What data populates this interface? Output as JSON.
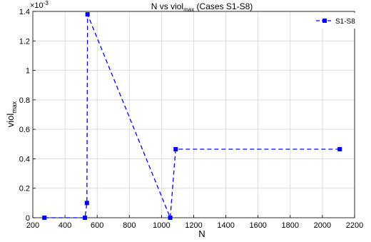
{
  "chart_data": {
    "type": "line",
    "title_main": "N  vs  viol",
    "title_sub": "max",
    "title_tail": " (Cases  S1-S8)",
    "xlabel": "N",
    "ylabel_main": "viol",
    "ylabel_sub": "max",
    "y_multiplier": "×10",
    "y_multiplier_exp": "-3",
    "xlim": [
      200,
      2200
    ],
    "ylim": [
      0,
      1.4
    ],
    "x_ticks": [
      200,
      400,
      600,
      800,
      1000,
      1200,
      1400,
      1600,
      1800,
      2000,
      2200
    ],
    "y_ticks": [
      0,
      0.2,
      0.4,
      0.6,
      0.8,
      1,
      1.2,
      1.4
    ],
    "grid": true,
    "legend_position": "top-right",
    "series": [
      {
        "name": "S1-S8",
        "color": "#0000ff",
        "line_style": "dashed",
        "marker": "square",
        "x": [
          272,
          524,
          536,
          540,
          1054,
          1088,
          2108
        ],
        "y": [
          0,
          0,
          0.1,
          1.38,
          0,
          0.465,
          0.465
        ]
      }
    ]
  }
}
